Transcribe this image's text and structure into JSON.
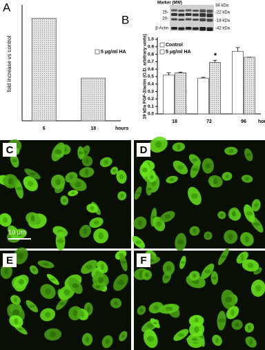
{
  "chart_data": [
    {
      "type": "bar",
      "panel_label": "A",
      "y_label": "fold increase vs control",
      "x_label": "hours",
      "categories": [
        "6",
        "18"
      ],
      "series": [
        {
          "name": "5 μg/ml HA",
          "color": "#d9d9d9",
          "values": [
            5.4,
            2.25
          ]
        }
      ],
      "ylim": [
        0,
        6
      ],
      "legend": "right"
    },
    {
      "type": "bar",
      "panel_label": "B",
      "y_label": "19 kDa FGF-2/actin (O.D. arbitrary units)",
      "x_label": "hours",
      "categories": [
        "18",
        "72",
        "96"
      ],
      "series": [
        {
          "name": "Control",
          "color": "#ffffff",
          "values": [
            0.52,
            0.48,
            0.84
          ],
          "errors": [
            0.03,
            0.01,
            0.05
          ]
        },
        {
          "name": "5 μg/ml HA",
          "color": "#d0d0d0",
          "values": [
            0.55,
            0.69,
            0.76
          ],
          "errors": [
            0.01,
            0.03,
            0.0
          ]
        }
      ],
      "annotation": "*",
      "ylim": [
        0,
        1
      ],
      "yticks": [
        {
          "value": 0,
          "label": "0.0"
        },
        {
          "value": 0.1,
          "label": "0.1"
        },
        {
          "value": 0.2,
          "label": "0.2"
        },
        {
          "value": 0.3,
          "label": "0.3"
        },
        {
          "value": 0.4,
          "label": "0.4"
        },
        {
          "value": 0.5,
          "label": "0.5"
        },
        {
          "value": 0.6,
          "label": "0.6"
        },
        {
          "value": 0.7,
          "label": "0.7"
        },
        {
          "value": 0.8,
          "label": "0.8"
        },
        {
          "value": 0.9,
          "label": "0.9"
        },
        {
          "value": 1,
          "label": "1.0"
        }
      ],
      "legend": "upper left"
    }
  ],
  "blot": {
    "title": "Marker (MW)",
    "left_labels": [
      "25-",
      "20-",
      "β-Actin"
    ],
    "right_labels": [
      "34 kDa",
      "-22 kDa",
      "-18 kDa",
      "-42 kDa"
    ]
  },
  "micrographs": {
    "panels": [
      "C",
      "D",
      "E",
      "F"
    ],
    "scale_bar": "10 μm"
  }
}
